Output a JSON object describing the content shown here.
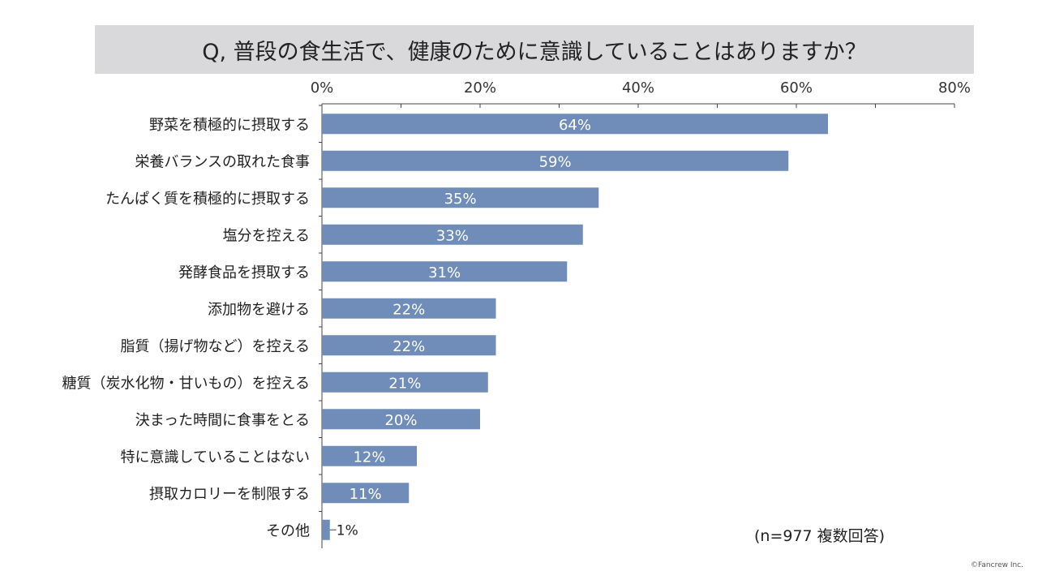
{
  "colors": {
    "bar": "#6f8db8",
    "axis": "#444444",
    "label_inside": "#ffffff",
    "label_outside": "#222222",
    "banner": "#d9d9db"
  },
  "chart_data": {
    "type": "bar",
    "orientation": "horizontal",
    "title": "Q, 普段の食生活で、健康のために意識していることはありますか？",
    "categories": [
      "野菜を積極的に摂取する",
      "栄養バランスの取れた食事",
      "たんぱく質を積極的に摂取する",
      "塩分を控える",
      "発酵食品を摂取する",
      "添加物を避ける",
      "脂質（揚げ物など）を控える",
      "糖質（炭水化物・甘いもの）を控える",
      "決まった時間に食事をとる",
      "特に意識していることはない",
      "摂取カロリーを制限する",
      "その他"
    ],
    "values": [
      64,
      59,
      35,
      33,
      31,
      22,
      22,
      21,
      20,
      12,
      11,
      1
    ],
    "value_labels": [
      "64%",
      "59%",
      "35%",
      "33%",
      "31%",
      "22%",
      "22%",
      "21%",
      "20%",
      "12%",
      "11%",
      "1%"
    ],
    "xlim": [
      0,
      80
    ],
    "ticks": [
      0,
      20,
      40,
      60,
      80
    ],
    "tick_labels": [
      "0%",
      "20%",
      "40%",
      "60%",
      "80%"
    ],
    "minor_ticks": [
      10,
      30,
      50,
      70
    ],
    "xlabel": "",
    "ylabel": "",
    "axis_position": "top",
    "grid": false
  },
  "note": "(n=977 複数回答)",
  "copyright": "©Fancrew Inc."
}
